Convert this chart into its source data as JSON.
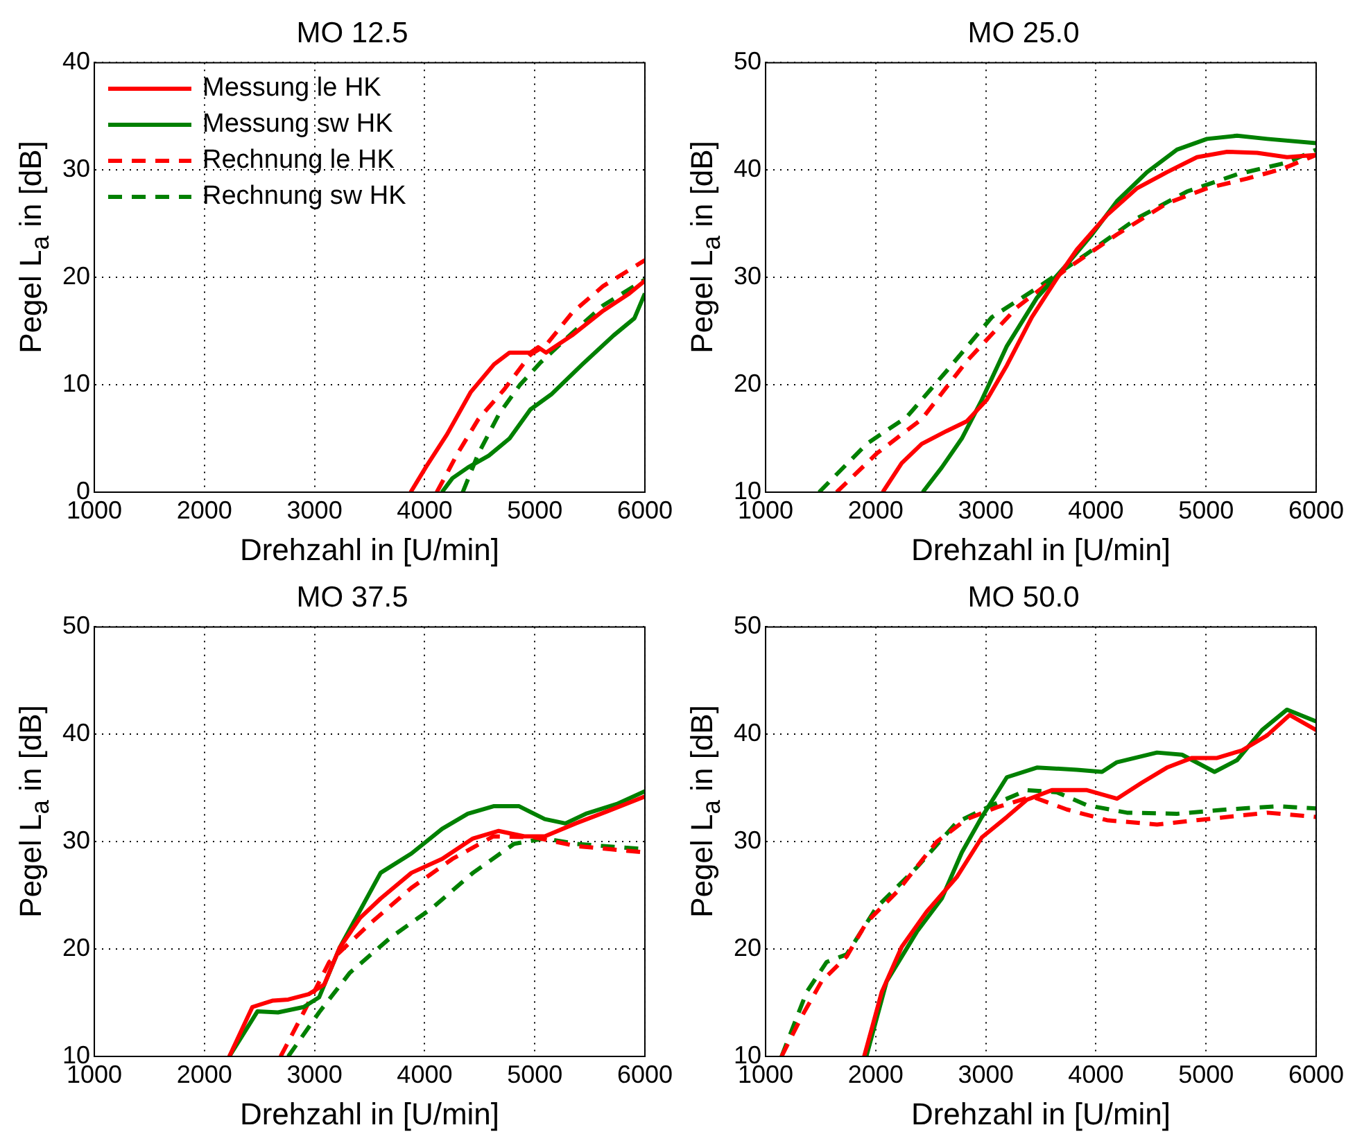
{
  "chart_data": [
    {
      "type": "line",
      "title": "MO 12.5",
      "xlabel": "Drehzahl in [U/min]",
      "ylabel": "Pegel L$_{a}$ in [dB]",
      "xlim": [
        1000,
        6000
      ],
      "ylim": [
        0,
        40
      ],
      "xticks": [
        1000,
        2000,
        3000,
        4000,
        5000,
        6000
      ],
      "yticks": [
        0,
        10,
        20,
        30,
        40
      ],
      "grid": true,
      "legend": "top left",
      "series": [
        {
          "name": "Messung le HK",
          "color": "#ff0000",
          "line_style": "solid",
          "x": [
            3873,
            4015,
            4204,
            4417,
            4630,
            4771,
            4960,
            5031,
            5102,
            5338,
            5622,
            5858,
            6000
          ],
          "values": [
            0,
            2.4,
            5.4,
            9.3,
            11.9,
            13,
            13,
            13.5,
            13,
            14.6,
            16.9,
            18.5,
            19.7
          ]
        },
        {
          "name": "Messung sw HK",
          "color": "#008000",
          "line_style": "solid",
          "x": [
            4157,
            4252,
            4393,
            4582,
            4771,
            4960,
            5149,
            5432,
            5716,
            5905,
            6000
          ],
          "values": [
            0,
            1.3,
            2.3,
            3.4,
            5,
            7.7,
            9.1,
            11.9,
            14.6,
            16.2,
            18.5
          ]
        },
        {
          "name": "Rechnung le HK",
          "color": "#ff0000",
          "line_style": "dashed",
          "x": [
            4110,
            4299,
            4488,
            4725,
            4960,
            5102,
            5338,
            5622,
            6000
          ],
          "values": [
            0,
            3.6,
            6.8,
            9.6,
            12.8,
            13.7,
            16.7,
            19.2,
            21.6
          ]
        },
        {
          "name": "Rechnung sw HK",
          "color": "#008000",
          "line_style": "dashed",
          "x": [
            4346,
            4488,
            4677,
            4866,
            5055,
            5338,
            5622,
            6000
          ],
          "values": [
            0,
            3.6,
            7.3,
            10,
            12.1,
            14.8,
            17.4,
            19.8
          ]
        }
      ]
    },
    {
      "type": "line",
      "title": "MO 25.0",
      "xlabel": "Drehzahl in [U/min]",
      "ylabel": "Pegel L$_{a}$ in [dB]",
      "xlim": [
        1000,
        6000
      ],
      "ylim": [
        10,
        50
      ],
      "xticks": [
        1000,
        2000,
        3000,
        4000,
        5000,
        6000
      ],
      "yticks": [
        10,
        20,
        30,
        40,
        50
      ],
      "grid": true,
      "series": [
        {
          "color": "#ff0000",
          "line_style": "solid",
          "x": [
            2064,
            2236,
            2418,
            2645,
            2827,
            3009,
            3191,
            3418,
            3645,
            3827,
            4100,
            4373,
            4645,
            4918,
            5191,
            5464,
            5736,
            6000
          ],
          "values": [
            10,
            12.7,
            14.5,
            15.7,
            16.6,
            18.6,
            21.8,
            26.3,
            29.9,
            32.6,
            35.8,
            38.3,
            39.8,
            41.2,
            41.7,
            41.6,
            41.2,
            41.4
          ]
        },
        {
          "color": "#008000",
          "line_style": "solid",
          "x": [
            2427,
            2600,
            2782,
            2964,
            3191,
            3464,
            3736,
            3964,
            4191,
            4464,
            4736,
            5009,
            5282,
            5555,
            6000
          ],
          "values": [
            10,
            12.3,
            15,
            18.6,
            23.6,
            28.1,
            31.2,
            34,
            37.1,
            39.8,
            41.9,
            42.9,
            43.2,
            42.9,
            42.5
          ]
        },
        {
          "color": "#ff0000",
          "line_style": "dashed",
          "x": [
            1645,
            2009,
            2418,
            2827,
            3282,
            3736,
            4191,
            4645,
            5009,
            5373,
            5691,
            6000
          ],
          "values": [
            10,
            13.6,
            16.8,
            22.2,
            27.2,
            30.8,
            34,
            36.9,
            38.3,
            39.2,
            40.1,
            41.4
          ]
        },
        {
          "color": "#008000",
          "line_style": "dashed",
          "x": [
            1486,
            1918,
            2282,
            2645,
            3055,
            3464,
            3918,
            4373,
            4827,
            5282,
            5736,
            6000
          ],
          "values": [
            10,
            14.5,
            17,
            21.3,
            26.3,
            29,
            32.2,
            35.5,
            38,
            39.6,
            40.7,
            41.9
          ]
        }
      ]
    },
    {
      "type": "line",
      "title": "MO 37.5",
      "xlabel": "Drehzahl in [U/min]",
      "ylabel": "Pegel L$_{a}$ in [dB]",
      "xlim": [
        1000,
        6000
      ],
      "ylim": [
        10,
        50
      ],
      "xticks": [
        1000,
        2000,
        3000,
        4000,
        5000,
        6000
      ],
      "yticks": [
        10,
        20,
        30,
        40,
        50
      ],
      "grid": true,
      "series": [
        {
          "color": "#ff0000",
          "line_style": "solid",
          "x": [
            2226,
            2435,
            2622,
            2761,
            2948,
            3088,
            3227,
            3414,
            3600,
            3880,
            4159,
            4439,
            4672,
            4905,
            5091,
            5371,
            5651,
            6000
          ],
          "values": [
            10,
            14.6,
            15.2,
            15.3,
            15.8,
            16.7,
            20.1,
            22.9,
            24.7,
            27.1,
            28.4,
            30.3,
            31,
            30.5,
            30.5,
            31.7,
            32.8,
            34.2
          ]
        },
        {
          "color": "#008000",
          "line_style": "solid",
          "x": [
            2226,
            2482,
            2668,
            2901,
            3041,
            3227,
            3600,
            3880,
            4159,
            4392,
            4625,
            4858,
            5091,
            5278,
            5464,
            5744,
            6000
          ],
          "values": [
            10,
            14.2,
            14.1,
            14.6,
            15.5,
            20.1,
            27.1,
            28.9,
            31.2,
            32.6,
            33.3,
            33.3,
            32.1,
            31.7,
            32.6,
            33.5,
            34.7
          ]
        },
        {
          "color": "#ff0000",
          "line_style": "dashed",
          "x": [
            2692,
            2901,
            3134,
            3507,
            3880,
            4253,
            4625,
            5000,
            5371,
            6000
          ],
          "values": [
            10,
            14.1,
            18.8,
            22.4,
            25.7,
            28.4,
            30.5,
            30.4,
            29.6,
            29
          ]
        },
        {
          "color": "#008000",
          "line_style": "dashed",
          "x": [
            2761,
            3041,
            3321,
            3694,
            4066,
            4439,
            4812,
            5091,
            5371,
            6000
          ],
          "values": [
            10,
            14.1,
            17.8,
            21.1,
            23.8,
            27.1,
            29.8,
            30.3,
            29.8,
            29.3
          ]
        }
      ]
    },
    {
      "type": "line",
      "title": "MO 50.0",
      "xlabel": "Drehzahl in [U/min]",
      "ylabel": "Pegel L$_{a}$ in [dB]",
      "xlim": [
        1000,
        6000
      ],
      "ylim": [
        10,
        50
      ],
      "xticks": [
        1000,
        2000,
        3000,
        4000,
        5000,
        6000
      ],
      "yticks": [
        10,
        20,
        30,
        40,
        50
      ],
      "grid": true,
      "series": [
        {
          "color": "#ff0000",
          "line_style": "solid",
          "x": [
            1895,
            2055,
            2236,
            2464,
            2736,
            2964,
            3191,
            3373,
            3600,
            3918,
            4191,
            4418,
            4645,
            4873,
            5100,
            5327,
            5555,
            5759,
            6000
          ],
          "values": [
            10,
            16,
            20.2,
            23.5,
            26.7,
            30.4,
            32.3,
            33.9,
            34.8,
            34.8,
            34,
            35.5,
            36.9,
            37.8,
            37.8,
            38.5,
            39.9,
            41.8,
            40.4
          ]
        },
        {
          "color": "#008000",
          "line_style": "solid",
          "x": [
            1915,
            2100,
            2373,
            2600,
            2782,
            2964,
            3191,
            3464,
            3827,
            4055,
            4191,
            4555,
            4782,
            5077,
            5282,
            5509,
            5736,
            6000
          ],
          "values": [
            10,
            17,
            21.6,
            24.7,
            29,
            32.3,
            36,
            36.9,
            36.7,
            36.5,
            37.4,
            38.3,
            38.1,
            36.5,
            37.6,
            40.4,
            42.3,
            41.2
          ]
        },
        {
          "color": "#ff0000",
          "line_style": "dashed",
          "x": [
            1145,
            1327,
            1509,
            1736,
            1918,
            2191,
            2555,
            2827,
            3100,
            3418,
            3736,
            4100,
            4555,
            5100,
            5555,
            6000
          ],
          "values": [
            10,
            13.7,
            17,
            19.3,
            22.5,
            25.3,
            30,
            32.1,
            33.2,
            34.2,
            33,
            32,
            31.6,
            32.2,
            32.7,
            32.3
          ]
        },
        {
          "color": "#008000",
          "line_style": "dashed",
          "x": [
            1145,
            1373,
            1555,
            1736,
            2009,
            2373,
            2736,
            3055,
            3373,
            3645,
            3918,
            4282,
            4736,
            5191,
            5645,
            6000
          ],
          "values": [
            10,
            16,
            18.8,
            19.5,
            23.9,
            27.6,
            31.8,
            33.4,
            34.8,
            34.6,
            33.4,
            32.7,
            32.6,
            33,
            33.3,
            33.1
          ]
        }
      ]
    }
  ]
}
